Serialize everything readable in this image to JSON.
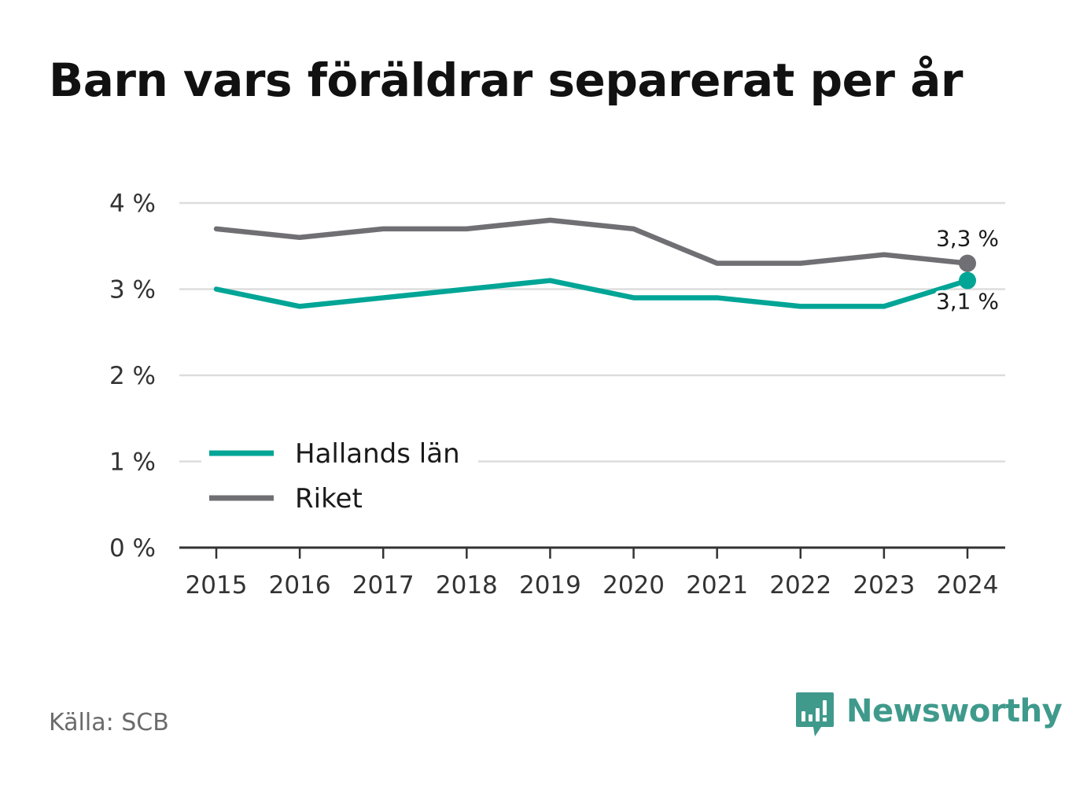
{
  "title": "Barn vars föräldrar separerat per år",
  "source": "Källa: SCB",
  "brand": {
    "name": "Newsworthy",
    "icon": "newsworthy-logo-icon",
    "color": "#3f9a8c"
  },
  "colors": {
    "hallands": "#00a596",
    "riket": "#707074",
    "grid": "#dddddd",
    "axis": "#333333"
  },
  "chart_data": {
    "type": "line",
    "title": "Barn vars föräldrar separerat per år",
    "x": [
      2015,
      2016,
      2017,
      2018,
      2019,
      2020,
      2021,
      2022,
      2023,
      2024
    ],
    "x_tick_labels": [
      "2015",
      "2016",
      "2017",
      "2018",
      "2019",
      "2020",
      "2021",
      "2022",
      "2023",
      "2024"
    ],
    "ylim": [
      0,
      4
    ],
    "y_ticks": [
      0,
      1,
      2,
      3,
      4
    ],
    "y_tick_labels": [
      "0 %",
      "1 %",
      "2 %",
      "3 %",
      "4 %"
    ],
    "grid": true,
    "legend_position": "bottom-left",
    "series": [
      {
        "name": "Hallands län",
        "color": "#00a596",
        "values": [
          3.0,
          2.8,
          2.9,
          3.0,
          3.1,
          2.9,
          2.9,
          2.8,
          2.8,
          3.1
        ],
        "end_label": "3,1 %"
      },
      {
        "name": "Riket",
        "color": "#707074",
        "values": [
          3.7,
          3.6,
          3.7,
          3.7,
          3.8,
          3.7,
          3.3,
          3.3,
          3.4,
          3.3
        ],
        "end_label": "3,3 %"
      }
    ]
  }
}
